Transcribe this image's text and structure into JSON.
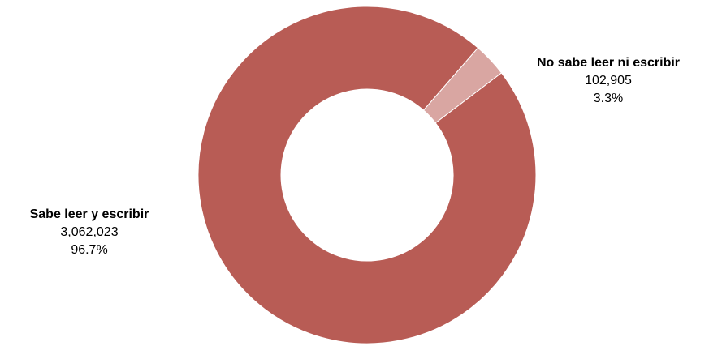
{
  "chart_data": {
    "type": "donut",
    "title": "",
    "slices": [
      {
        "label": "No sabe leer ni escribir",
        "value": 102905,
        "value_text": "102,905",
        "percent_text": "3.3%",
        "color": "#d9a6a2"
      },
      {
        "label": "Sabe leer y escribir",
        "value": 3062023,
        "value_text": "3,062,023",
        "percent_text": "96.7%",
        "color": "#b85c55"
      }
    ],
    "start_angle_deg": 41,
    "direction": "clockwise",
    "legend": "none"
  }
}
